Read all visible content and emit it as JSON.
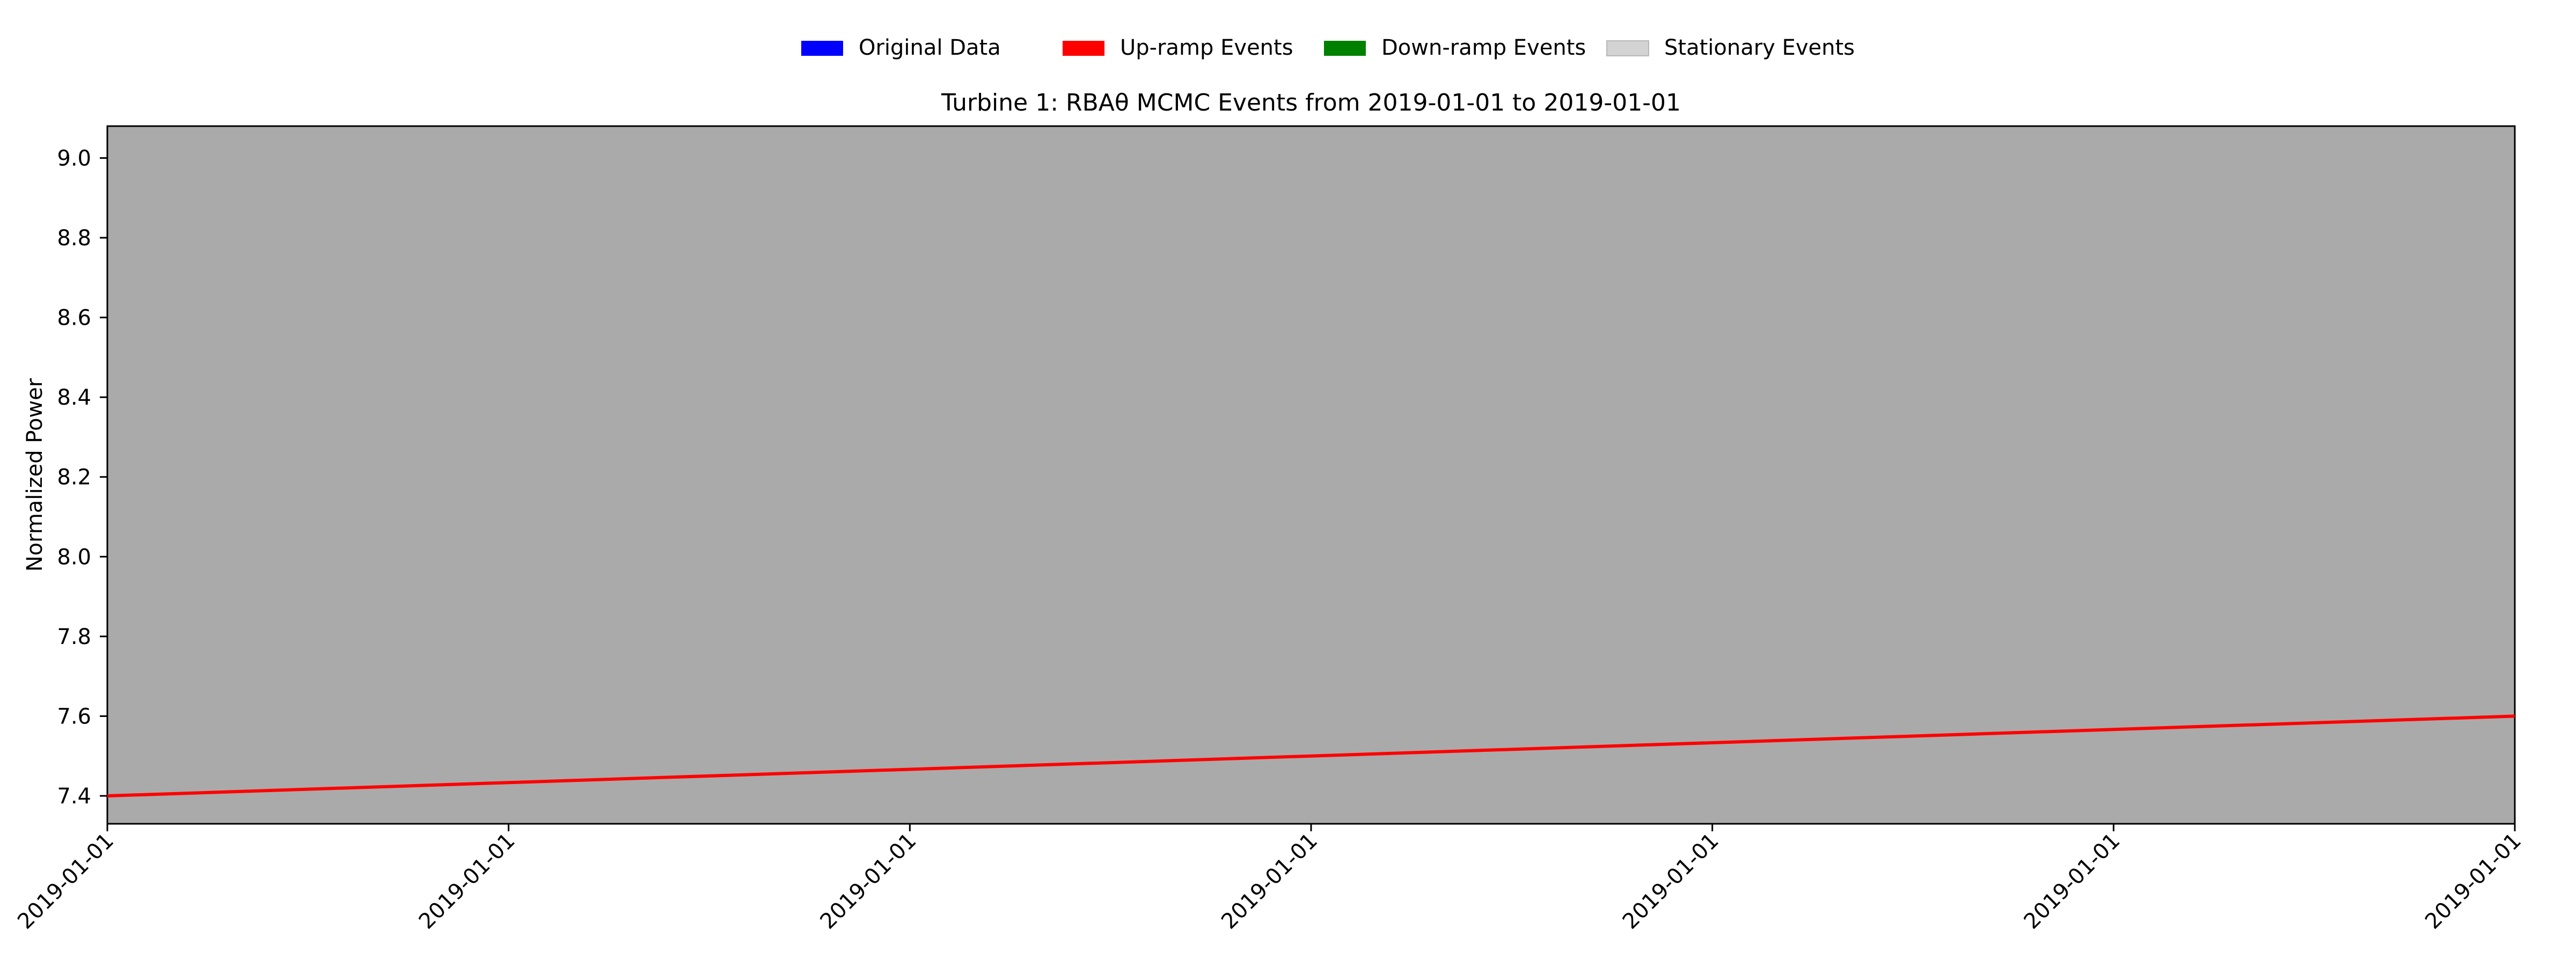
{
  "chart_data": {
    "type": "line",
    "title": "Turbine 1: RBAθ MCMC Events from 2019-01-01 to 2019-01-01",
    "xlabel": "",
    "ylabel": "Normalized Power",
    "ylim": [
      7.33,
      9.08
    ],
    "yticks": [
      7.4,
      7.6,
      7.8,
      8.0,
      8.2,
      8.4,
      8.6,
      8.8,
      9.0
    ],
    "ytick_labels": [
      "7.4",
      "7.6",
      "7.8",
      "8.0",
      "8.2",
      "8.4",
      "8.6",
      "8.8",
      "9.0"
    ],
    "xtick_labels": [
      "2019-01-01",
      "2019-01-01",
      "2019-01-01",
      "2019-01-01",
      "2019-01-01",
      "2019-01-01",
      "2019-01-01"
    ],
    "legend_position": "top-center",
    "grid": false,
    "plot_background": "#aaaaaa",
    "legend": [
      {
        "label": "Original Data",
        "color": "#0000ff"
      },
      {
        "label": "Up-ramp Events",
        "color": "#ff0000"
      },
      {
        "label": "Down-ramp Events",
        "color": "#008000"
      },
      {
        "label": "Stationary Events",
        "color": "#d3d3d3"
      }
    ],
    "series": [
      {
        "color": "#ff0000",
        "values": [
          7.4,
          7.6
        ]
      }
    ]
  }
}
